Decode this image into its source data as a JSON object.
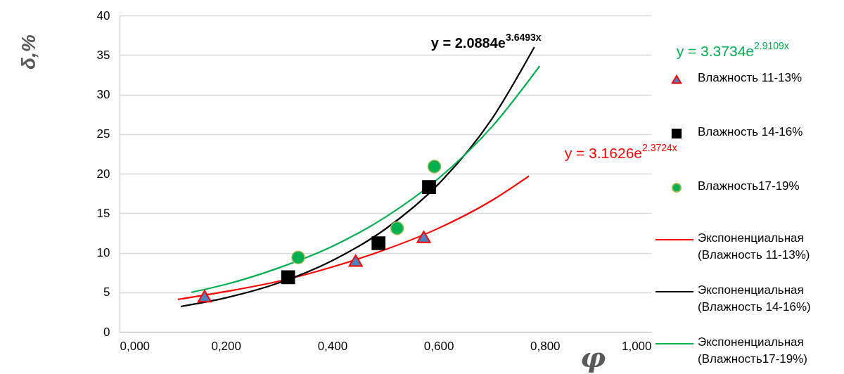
{
  "chart_data": {
    "type": "scatter",
    "xlabel": "φ",
    "ylabel": "δ,%",
    "xlim": [
      0,
      1
    ],
    "ylim": [
      0,
      40
    ],
    "xticks": [
      {
        "value": 0,
        "label": "0,000"
      },
      {
        "value": 0.2,
        "label": "0,200"
      },
      {
        "value": 0.4,
        "label": "0,400"
      },
      {
        "value": 0.6,
        "label": "0,600"
      },
      {
        "value": 0.8,
        "label": "0,800"
      },
      {
        "value": 1,
        "label": "1,000"
      }
    ],
    "yticks": [
      0,
      5,
      10,
      15,
      20,
      25,
      30,
      35,
      40
    ],
    "grid": "y",
    "legend": "right",
    "annotations": [
      "y = 2.0884e$^{3.6493x}$",
      "y = 3.3734e$^{2.9109x}$",
      "y = 3.1626e$^{2.3724x}$"
    ],
    "series": [
      {
        "name": "Влажность 11-13%",
        "marker": "triangle",
        "color": "#4f81bd",
        "x": [
          0.16,
          0.444,
          0.572
        ],
        "values": [
          4.5,
          9.0,
          12.0
        ]
      },
      {
        "name": "Влажность 14-16%",
        "marker": "square",
        "color": "#000000",
        "x": [
          0.317,
          0.487,
          0.582
        ],
        "values": [
          6.9,
          11.2,
          18.3
        ]
      },
      {
        "name": "Влажность17-19%",
        "marker": "circle",
        "color": "#00b050",
        "x": [
          0.336,
          0.522,
          0.592
        ],
        "values": [
          9.4,
          13.1,
          20.9
        ]
      },
      {
        "name": "Экспоненциальная (Влажность 11-13%)",
        "type": "line",
        "color": "#ff0000",
        "x": [
          0.11,
          0.2,
          0.3,
          0.4,
          0.5,
          0.6,
          0.7,
          0.77
        ],
        "values": [
          4.1,
          5.1,
          6.4,
          8.2,
          10.4,
          13.1,
          16.6,
          19.7
        ]
      },
      {
        "name": "Экспоненциальная (Влажность 14-16%)",
        "type": "line",
        "color": "#000000",
        "x": [
          0.115,
          0.2,
          0.3,
          0.4,
          0.5,
          0.6,
          0.7,
          0.78
        ],
        "values": [
          3.2,
          4.3,
          6.2,
          9.0,
          13.0,
          18.7,
          26.9,
          36.0
        ]
      },
      {
        "name": "Экспоненциальная (Влажность17-19%)",
        "type": "line",
        "color": "#00b050",
        "x": [
          0.135,
          0.2,
          0.3,
          0.4,
          0.5,
          0.6,
          0.7,
          0.79
        ],
        "values": [
          5.0,
          6.0,
          8.1,
          10.8,
          14.5,
          19.4,
          25.9,
          33.6
        ]
      }
    ]
  }
}
